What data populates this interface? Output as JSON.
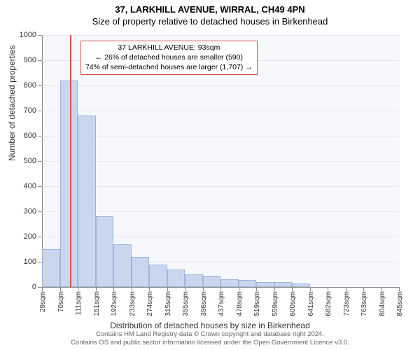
{
  "title": "37, LARKHILL AVENUE, WIRRAL, CH49 4PN",
  "subtitle": "Size of property relative to detached houses in Birkenhead",
  "chart": {
    "type": "histogram",
    "background_color": "#f6f8fb",
    "grid_color": "#e3e6ec",
    "bar_fill": "#c9d6ee",
    "bar_border": "#9fb4db",
    "marker_color": "#d9534f",
    "xlabel": "Distribution of detached houses by size in Birkenhead",
    "ylabel": "Number of detached properties",
    "ylim": [
      0,
      1000
    ],
    "ytick_step": 100,
    "x_ticklabels": [
      "29sqm",
      "70sqm",
      "111sqm",
      "151sqm",
      "192sqm",
      "233sqm",
      "274sqm",
      "315sqm",
      "355sqm",
      "396sqm",
      "437sqm",
      "478sqm",
      "519sqm",
      "559sqm",
      "600sqm",
      "641sqm",
      "682sqm",
      "723sqm",
      "763sqm",
      "804sqm",
      "845sqm"
    ],
    "values": [
      150,
      820,
      680,
      280,
      170,
      120,
      90,
      70,
      50,
      45,
      30,
      28,
      20,
      20,
      15,
      0,
      0,
      0,
      0,
      0
    ],
    "marker_position_index": 1.55,
    "callout": {
      "line1": "37 LARKHILL AVENUE: 93sqm",
      "line2": "← 26% of detached houses are smaller (590)",
      "line3": "74% of semi-detached houses are larger (1,707) →"
    }
  },
  "footer": {
    "line1": "Contains HM Land Registry data © Crown copyright and database right 2024.",
    "line2": "Contains OS and public sector information licensed under the Open Government Licence v3.0."
  }
}
